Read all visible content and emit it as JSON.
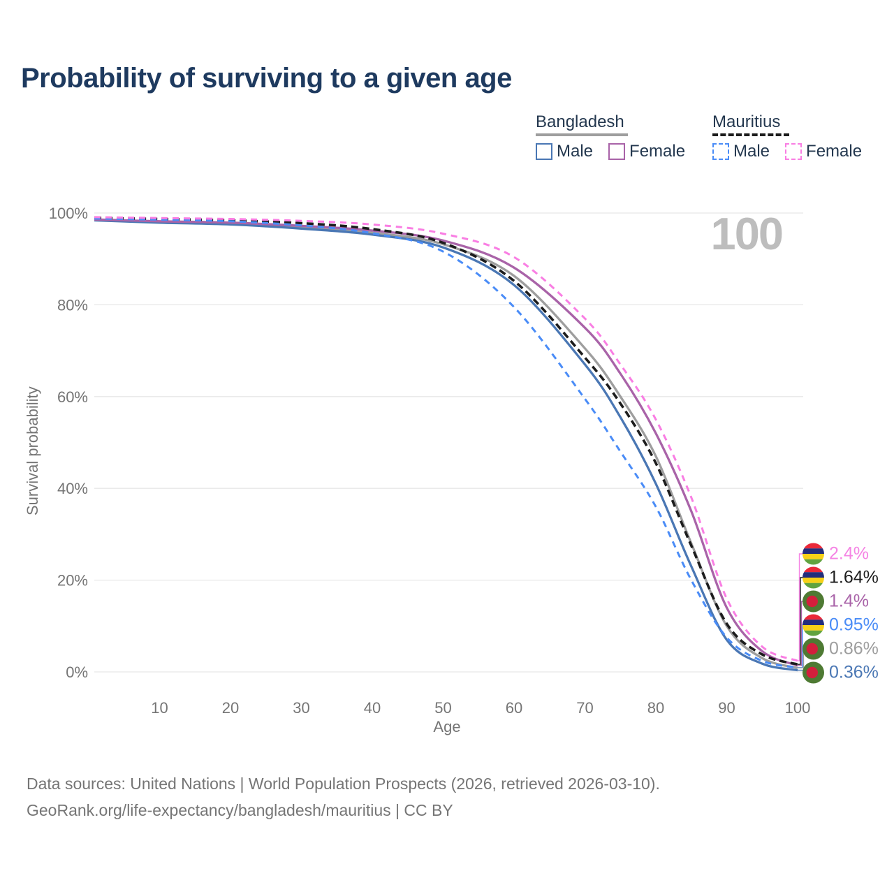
{
  "title": "Probability of surviving to a given age",
  "watermark": "100",
  "colors": {
    "title": "#1e3a5f",
    "axis_text": "#757575",
    "gridline": "#e7e7e7",
    "watermark": "#bdbdbd",
    "legend_text": "#24384f"
  },
  "legend": {
    "groups": [
      {
        "name": "Bangladesh",
        "line_style": "solid",
        "line_color": "#9e9e9e",
        "items": [
          {
            "label": "Male",
            "color": "#4a77b4"
          },
          {
            "label": "Female",
            "color": "#a963a8"
          }
        ]
      },
      {
        "name": "Mauritius",
        "line_style": "dashed",
        "line_color": "#1c1c1c",
        "items": [
          {
            "label": "Male",
            "color": "#4a8cf7"
          },
          {
            "label": "Female",
            "color": "#f97ee3"
          }
        ]
      }
    ]
  },
  "chart_data": {
    "type": "line",
    "title": "Probability of surviving to a given age",
    "xlabel": "Age",
    "ylabel": "Survival probability",
    "xlim": [
      0,
      100
    ],
    "ylim": [
      0,
      100
    ],
    "grid": "horizontal",
    "xticks": [
      10,
      20,
      30,
      40,
      50,
      60,
      70,
      80,
      90,
      100
    ],
    "yticks": [
      {
        "value": 0,
        "label": "0%"
      },
      {
        "value": 20,
        "label": "20%"
      },
      {
        "value": 40,
        "label": "40%"
      },
      {
        "value": 60,
        "label": "60%"
      },
      {
        "value": 80,
        "label": "80%"
      },
      {
        "value": 100,
        "label": "100%"
      }
    ],
    "ages": [
      0.8,
      10,
      20,
      30,
      40,
      50,
      60,
      70,
      75,
      80,
      85,
      90,
      95,
      100
    ],
    "series": [
      {
        "id": "bangladesh-total",
        "name": "Bangladesh",
        "country": "Bangladesh",
        "sex": "Total",
        "color": "#9e9e9e",
        "dash": "solid",
        "dasharray": "",
        "width": 3.3,
        "values": [
          98.5,
          98.05,
          97.7,
          96.9,
          95.7,
          93.2,
          86.3,
          70.5,
          60,
          47,
          28,
          10,
          3.0,
          0.86
        ]
      },
      {
        "id": "bangladesh-male",
        "name": "Bangladesh Male",
        "country": "Bangladesh",
        "sex": "Male",
        "color": "#4a77b4",
        "dash": "solid",
        "dasharray": "",
        "width": 3.3,
        "values": [
          98.4,
          97.9,
          97.5,
          96.6,
          95.3,
          92.5,
          84.3,
          67,
          55.5,
          41,
          23,
          7,
          1.8,
          0.36
        ]
      },
      {
        "id": "bangladesh-female",
        "name": "Bangladesh Female",
        "country": "Bangladesh",
        "sex": "Female",
        "color": "#a963a8",
        "dash": "solid",
        "dasharray": "",
        "width": 3.3,
        "values": [
          98.6,
          98.2,
          97.9,
          97.2,
          96.2,
          94.0,
          88.1,
          75,
          65,
          52,
          35,
          14,
          4.5,
          1.4
        ]
      },
      {
        "id": "mauritius-total",
        "name": "Mauritius",
        "country": "Mauritius",
        "sex": "Total",
        "color": "#1c1c1c",
        "dash": "dashed",
        "dasharray": "10 6",
        "width": 3.6,
        "values": [
          98.95,
          98.7,
          98.4,
          97.8,
          96.5,
          93.5,
          85.2,
          68.5,
          58.5,
          45.5,
          27.5,
          10.5,
          3.8,
          1.64
        ]
      },
      {
        "id": "mauritius-male",
        "name": "Mauritius Male",
        "country": "Mauritius",
        "sex": "Male",
        "color": "#4a8cf7",
        "dash": "dashed",
        "dasharray": "9 7",
        "width": 3,
        "values": [
          98.8,
          98.55,
          98.2,
          97.3,
          95.6,
          91.6,
          79.5,
          59.5,
          48,
          36,
          20,
          7.5,
          2.4,
          0.95
        ]
      },
      {
        "id": "mauritius-female",
        "name": "Mauritius Female",
        "country": "Mauritius",
        "sex": "Female",
        "color": "#f97ee3",
        "dash": "dashed",
        "dasharray": "9 7",
        "width": 3,
        "values": [
          99.1,
          98.9,
          98.7,
          98.3,
          97.5,
          95.5,
          90.4,
          77,
          67,
          55,
          38,
          16,
          5.5,
          2.4
        ]
      }
    ]
  },
  "end_labels": [
    {
      "text": "2.4%",
      "color": "#f584e4",
      "flag": "mauritius",
      "series": "Mauritius Female"
    },
    {
      "text": "1.64%",
      "color": "#1c1c1c",
      "flag": "mauritius",
      "series": "Mauritius"
    },
    {
      "text": "1.4%",
      "color": "#a963a8",
      "flag": "bangladesh",
      "series": "Bangladesh Female"
    },
    {
      "text": "0.95%",
      "color": "#4a8cf7",
      "flag": "mauritius",
      "series": "Mauritius Male"
    },
    {
      "text": "0.86%",
      "color": "#9e9e9e",
      "flag": "bangladesh",
      "series": "Bangladesh"
    },
    {
      "text": "0.36%",
      "color": "#4a77b4",
      "flag": "bangladesh",
      "series": "Bangladesh Male"
    }
  ],
  "flags": {
    "mauritius": {
      "stripes": [
        "#ea2839",
        "#222e7c",
        "#f7d117",
        "#61a33f"
      ]
    },
    "bangladesh": {
      "field": "#4e7a33",
      "disc": "#d31f3c"
    }
  },
  "footer": {
    "line1": "Data sources: United Nations | World Population Prospects (2026, retrieved 2026-03-10).",
    "line2": "GeoRank.org/life-expectancy/bangladesh/mauritius | CC BY"
  }
}
